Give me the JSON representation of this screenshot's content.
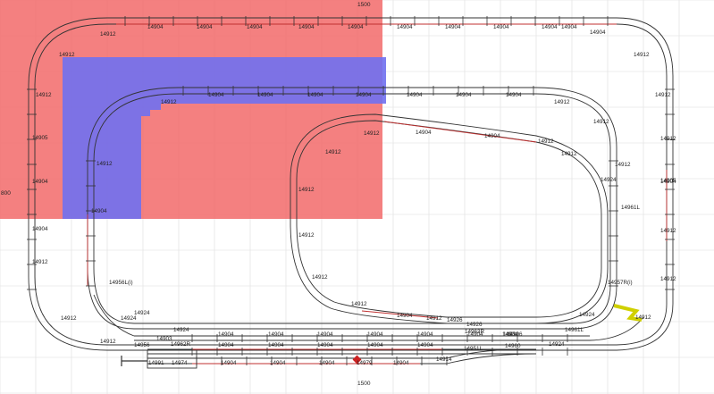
{
  "colors": {
    "background": "#ffffff",
    "grid": "#dddddd",
    "red_region": "#f26a6a",
    "blue_region": "#7070f0",
    "track_rail": "#333333",
    "track_red_segment": "#c03030",
    "label_text": "#222222",
    "marker": "#d0d000",
    "signal": "#cc2222"
  },
  "dimensions": {
    "top_width": "1500",
    "left_height": "800",
    "bottom_width": "1500"
  },
  "labels": {
    "outer_top": [
      "14912",
      "14904",
      "14904",
      "14904",
      "14904",
      "14904",
      "14904",
      "14904",
      "14904",
      "14904",
      "14904",
      "14904",
      "14912"
    ],
    "outer_left": [
      "14912",
      "14912",
      "14905",
      "14904",
      "14904",
      "14912",
      "14912",
      "14912"
    ],
    "outer_right": [
      "14912",
      "14912",
      "14905",
      "14904",
      "14912",
      "14912",
      "14957R(i)",
      "14912"
    ],
    "blue_track": [
      "14912",
      "14904",
      "14904",
      "14904",
      "14904",
      "14904",
      "14904",
      "14904",
      "14912",
      "14912"
    ],
    "inner_left": [
      "14912",
      "14904",
      "14956L(i)",
      "14924",
      "14924",
      "14903",
      "14962R",
      "14956"
    ],
    "inner_right": [
      "14912",
      "14912",
      "14961L",
      "14924",
      "14924",
      "14961L",
      "14924"
    ],
    "oval": [
      "14912",
      "14904",
      "14904",
      "14912",
      "14912",
      "14912",
      "14912",
      "14912",
      "14912",
      "14904",
      "14912",
      "14926",
      "14926",
      "14963R",
      "14912"
    ],
    "bottom_row1": [
      "14924",
      "14904",
      "14904",
      "14904",
      "14904",
      "14904",
      "14904",
      "14904",
      "14906"
    ],
    "bottom_row2": [
      "14904",
      "14904",
      "14904",
      "14904",
      "14904",
      "14951L",
      "14960"
    ],
    "bottom_row3": [
      "14991",
      "14974",
      "14904",
      "14904",
      "14904",
      "14979",
      "14904",
      "14914"
    ]
  }
}
